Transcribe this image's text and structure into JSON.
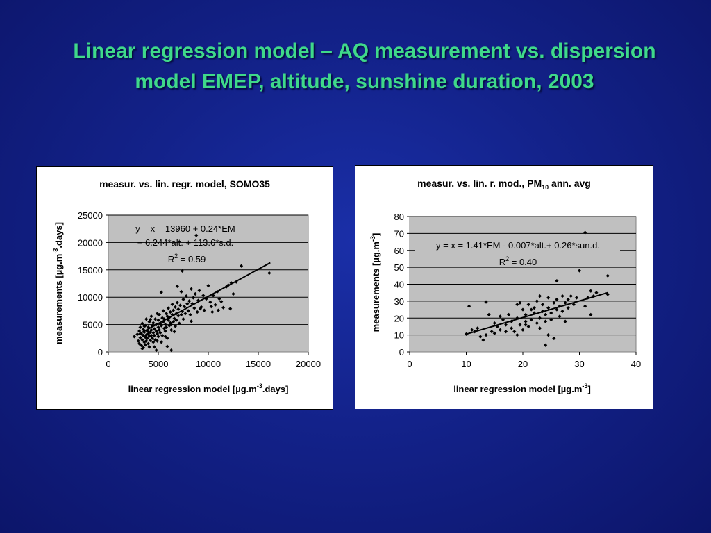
{
  "slide": {
    "title_line1": "Linear regression model – AQ measurement vs. dispersion",
    "title_line2": "model EMEP, altitude, sunshine duration, 2003"
  },
  "colors": {
    "background": "#13228a",
    "title": "#3fd98a",
    "plot_area": "#c0c0c0",
    "points": "#000000"
  },
  "chart_data": [
    {
      "type": "scatter",
      "title": "measur. vs. lin. regr. model, SOMO35",
      "xlabel": "linear regression model  [µg.m-3.days]",
      "ylabel": "measurements  [µg.m-3.days]",
      "xlim": [
        0,
        20000
      ],
      "ylim": [
        0,
        25000
      ],
      "xticks": [
        0,
        5000,
        10000,
        15000,
        20000
      ],
      "yticks": [
        0,
        5000,
        10000,
        15000,
        20000,
        25000
      ],
      "equation_line1": "y = x = 13960 + 0.24*EM",
      "equation_line2": "+ 6.244*alt. + 113.6*s.d.",
      "r2_label": "R",
      "r2_value": " = 0.59",
      "trendline": {
        "x": [
          3000,
          16200
        ],
        "y": [
          3200,
          16300
        ]
      },
      "points": [
        [
          2600,
          2800
        ],
        [
          2900,
          3200
        ],
        [
          3000,
          2000
        ],
        [
          3100,
          1500
        ],
        [
          3100,
          3800
        ],
        [
          3200,
          4500
        ],
        [
          3200,
          2600
        ],
        [
          3300,
          1200
        ],
        [
          3300,
          3300
        ],
        [
          3400,
          5200
        ],
        [
          3400,
          2200
        ],
        [
          3500,
          3000
        ],
        [
          3500,
          4100
        ],
        [
          3500,
          800
        ],
        [
          3600,
          1800
        ],
        [
          3600,
          3600
        ],
        [
          3700,
          2700
        ],
        [
          3700,
          4800
        ],
        [
          3700,
          1300
        ],
        [
          3800,
          3100
        ],
        [
          3800,
          2000
        ],
        [
          3800,
          6000
        ],
        [
          3900,
          3800
        ],
        [
          3900,
          2500
        ],
        [
          4000,
          1500
        ],
        [
          4000,
          3300
        ],
        [
          4000,
          4500
        ],
        [
          4100,
          2900
        ],
        [
          4100,
          5500
        ],
        [
          4100,
          900
        ],
        [
          4200,
          3600
        ],
        [
          4200,
          2100
        ],
        [
          4300,
          4000
        ],
        [
          4300,
          3000
        ],
        [
          4300,
          6500
        ],
        [
          4400,
          2500
        ],
        [
          4400,
          4800
        ],
        [
          4500,
          3500
        ],
        [
          4500,
          1800
        ],
        [
          4500,
          5300
        ],
        [
          4600,
          3000
        ],
        [
          4600,
          4200
        ],
        [
          4700,
          2200
        ],
        [
          4700,
          6000
        ],
        [
          4800,
          3800
        ],
        [
          4800,
          5000
        ],
        [
          4800,
          300
        ],
        [
          4900,
          3300
        ],
        [
          4900,
          7000
        ],
        [
          5000,
          4500
        ],
        [
          5000,
          2800
        ],
        [
          5000,
          5800
        ],
        [
          5100,
          4000
        ],
        [
          5100,
          6800
        ],
        [
          5200,
          3500
        ],
        [
          5200,
          5200
        ],
        [
          5300,
          4800
        ],
        [
          5300,
          1800
        ],
        [
          5400,
          6200
        ],
        [
          5400,
          3000
        ],
        [
          5500,
          5500
        ],
        [
          5500,
          7500
        ],
        [
          5600,
          4300
        ],
        [
          5600,
          6000
        ],
        [
          5700,
          3800
        ],
        [
          5700,
          5000
        ],
        [
          5800,
          7000
        ],
        [
          5800,
          4500
        ],
        [
          5900,
          6500
        ],
        [
          5900,
          2500
        ],
        [
          6000,
          5800
        ],
        [
          6000,
          8000
        ],
        [
          6100,
          4800
        ],
        [
          6100,
          6300
        ],
        [
          6200,
          7300
        ],
        [
          6200,
          5300
        ],
        [
          6300,
          4000
        ],
        [
          6300,
          300
        ],
        [
          6400,
          6800
        ],
        [
          6400,
          8700
        ],
        [
          6500,
          5500
        ],
        [
          6500,
          7600
        ],
        [
          6600,
          6100
        ],
        [
          6700,
          4700
        ],
        [
          6700,
          8200
        ],
        [
          6800,
          7000
        ],
        [
          6800,
          5800
        ],
        [
          6900,
          9000
        ],
        [
          7000,
          6600
        ],
        [
          7000,
          7800
        ],
        [
          7100,
          5200
        ],
        [
          7200,
          8500
        ],
        [
          7300,
          6800
        ],
        [
          7300,
          11000
        ],
        [
          7400,
          7400
        ],
        [
          7500,
          9600
        ],
        [
          7500,
          6000
        ],
        [
          7600,
          8300
        ],
        [
          7700,
          7000
        ],
        [
          7800,
          10200
        ],
        [
          7900,
          8800
        ],
        [
          8000,
          7500
        ],
        [
          8100,
          9300
        ],
        [
          8200,
          6800
        ],
        [
          8300,
          11500
        ],
        [
          8400,
          8800
        ],
        [
          8500,
          9900
        ],
        [
          8600,
          8000
        ],
        [
          8700,
          10600
        ],
        [
          8800,
          21300
        ],
        [
          8900,
          7300
        ],
        [
          9000,
          9400
        ],
        [
          9100,
          11200
        ],
        [
          9300,
          8200
        ],
        [
          9500,
          10300
        ],
        [
          9600,
          7600
        ],
        [
          9800,
          9700
        ],
        [
          10000,
          12100
        ],
        [
          10200,
          9100
        ],
        [
          10400,
          7300
        ],
        [
          10500,
          10300
        ],
        [
          10700,
          8600
        ],
        [
          10900,
          11000
        ],
        [
          11000,
          7600
        ],
        [
          11300,
          9200
        ],
        [
          11500,
          8100
        ],
        [
          11800,
          11900
        ],
        [
          12000,
          12200
        ],
        [
          12200,
          7900
        ],
        [
          12500,
          10600
        ],
        [
          12800,
          12800
        ],
        [
          13300,
          15700
        ],
        [
          7400,
          14800
        ],
        [
          5300,
          10900
        ],
        [
          6900,
          12000
        ],
        [
          16100,
          14400
        ],
        [
          3600,
          4700
        ],
        [
          4200,
          5900
        ],
        [
          4900,
          2000
        ],
        [
          5700,
          2800
        ],
        [
          6600,
          3700
        ],
        [
          8300,
          5600
        ],
        [
          9200,
          7900
        ],
        [
          10300,
          8300
        ],
        [
          11100,
          9700
        ],
        [
          12300,
          12600
        ],
        [
          3400,
          600
        ],
        [
          4600,
          900
        ],
        [
          5900,
          1000
        ],
        [
          6300,
          5000
        ]
      ]
    },
    {
      "type": "scatter",
      "title_main": "measur. vs. lin. r. mod., PM",
      "title_sub": "10",
      "title_tail": " ann. avg",
      "xlabel": "linear regression model  [µg.m-3]",
      "ylabel": "measurements  [µg.m-3]",
      "xlim": [
        0,
        40
      ],
      "ylim": [
        0,
        80
      ],
      "xticks": [
        0,
        10,
        20,
        30,
        40
      ],
      "yticks": [
        0,
        10,
        20,
        30,
        40,
        50,
        60,
        70,
        80
      ],
      "equation_line1": "y = x = 1.41*EM - 0.007*alt.+ 0.26*sun.d.",
      "r2_label": "R",
      "r2_value": " = 0.40",
      "trendline": {
        "x": [
          10,
          35
        ],
        "y": [
          10.5,
          35
        ]
      },
      "points": [
        [
          10,
          10.5
        ],
        [
          10.5,
          27
        ],
        [
          11,
          13
        ],
        [
          11.5,
          12
        ],
        [
          12,
          14
        ],
        [
          12.5,
          9
        ],
        [
          13,
          7
        ],
        [
          13.5,
          10
        ],
        [
          13.5,
          29.5
        ],
        [
          14,
          22
        ],
        [
          14.5,
          12
        ],
        [
          15,
          11
        ],
        [
          15,
          17
        ],
        [
          15.5,
          15
        ],
        [
          16,
          21
        ],
        [
          16,
          13
        ],
        [
          16.5,
          19
        ],
        [
          17,
          12
        ],
        [
          17,
          16
        ],
        [
          17.5,
          22
        ],
        [
          18,
          14
        ],
        [
          18,
          18
        ],
        [
          18.5,
          12
        ],
        [
          19,
          10
        ],
        [
          19,
          20
        ],
        [
          19,
          28
        ],
        [
          19.5,
          16
        ],
        [
          20,
          25
        ],
        [
          20,
          13
        ],
        [
          20.5,
          18
        ],
        [
          20.5,
          22
        ],
        [
          21,
          15
        ],
        [
          21,
          28
        ],
        [
          21.5,
          19
        ],
        [
          22,
          23
        ],
        [
          22,
          26
        ],
        [
          22.5,
          17
        ],
        [
          22.5,
          30
        ],
        [
          23,
          20
        ],
        [
          23,
          14
        ],
        [
          23.5,
          24
        ],
        [
          23.5,
          28
        ],
        [
          24,
          18
        ],
        [
          24,
          22
        ],
        [
          24,
          4
        ],
        [
          24.5,
          26
        ],
        [
          24.5,
          32
        ],
        [
          25,
          19
        ],
        [
          25,
          23
        ],
        [
          25.5,
          29
        ],
        [
          25.5,
          8
        ],
        [
          26,
          25
        ],
        [
          26,
          31
        ],
        [
          26.5,
          27
        ],
        [
          26.5,
          21
        ],
        [
          27,
          33
        ],
        [
          27,
          24
        ],
        [
          27.5,
          29
        ],
        [
          28,
          26
        ],
        [
          28,
          31
        ],
        [
          28.5,
          33
        ],
        [
          29,
          28
        ],
        [
          29.5,
          32
        ],
        [
          30,
          48
        ],
        [
          31,
          70.5
        ],
        [
          31,
          27
        ],
        [
          31.5,
          32
        ],
        [
          32,
          22
        ],
        [
          32,
          36
        ],
        [
          32.5,
          33
        ],
        [
          33,
          35
        ],
        [
          35,
          45
        ],
        [
          35,
          34
        ],
        [
          19.5,
          29
        ],
        [
          20.5,
          16
        ],
        [
          21.5,
          25
        ],
        [
          23,
          33
        ],
        [
          24.5,
          10
        ],
        [
          26,
          42
        ],
        [
          27.5,
          18
        ]
      ]
    }
  ]
}
